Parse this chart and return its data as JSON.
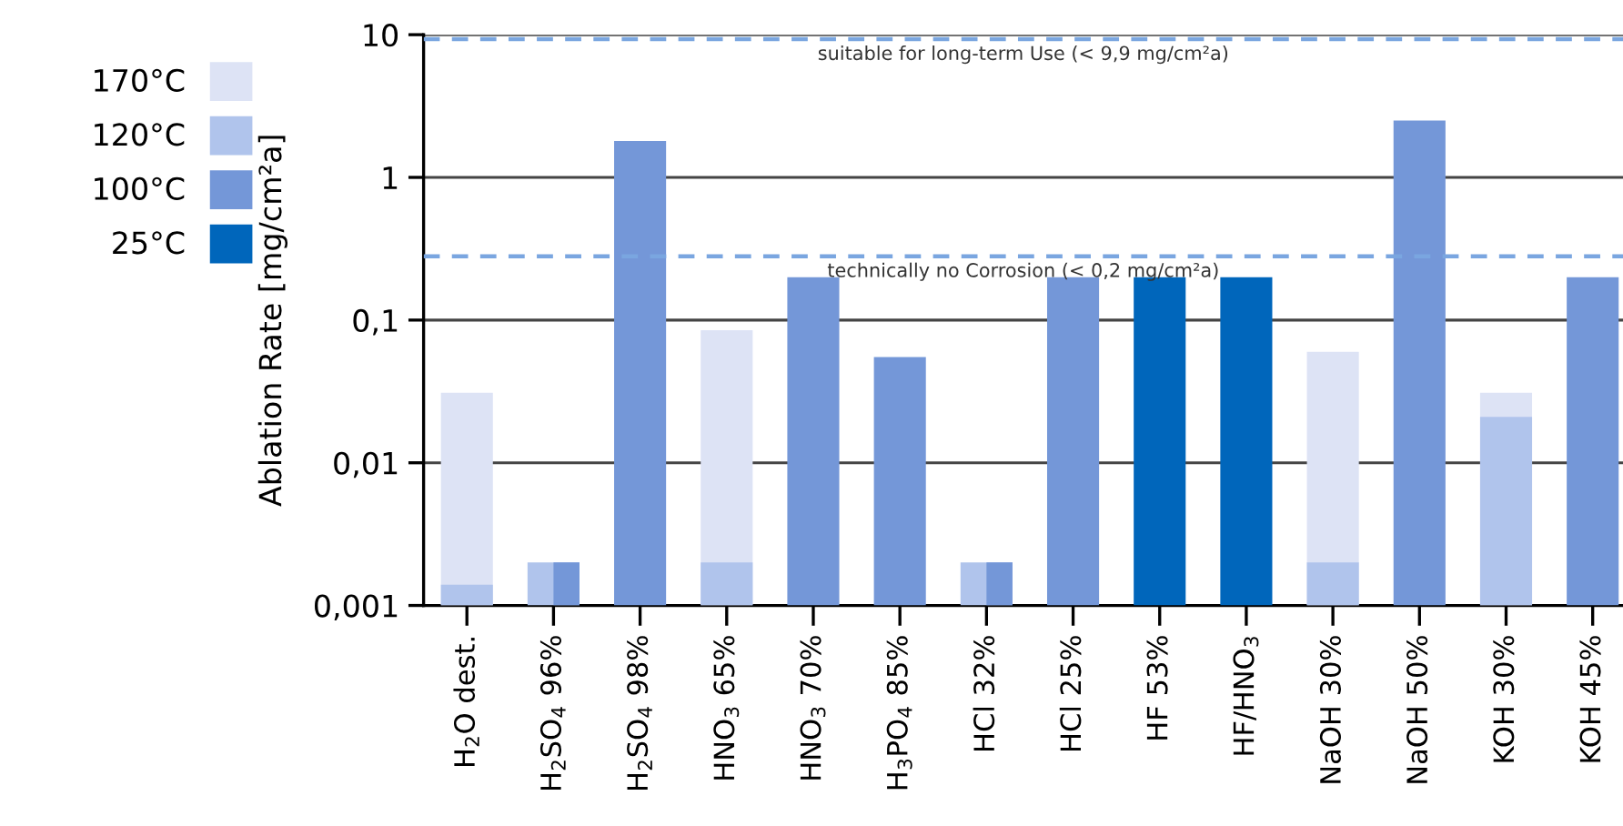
{
  "chart_data": {
    "type": "bar",
    "ylabel": "Ablation Rate [mg/cm²a]",
    "categories": [
      "H$_{2}$O dest.",
      "H$_{2}$SO$_{4}$ 96%",
      "H$_{2}$SO$_{4}$ 98%",
      "HNO$_{3}$ 65%",
      "HNO$_{3}$ 70%",
      "H$_{3}$PO$_{4}$ 85%",
      "HCl 32%",
      "HCl 25%",
      "HF 53%",
      "HF/HNO$_{3}$",
      "NaOH 30%",
      "NaOH 50%",
      "KOH 30%",
      "KOH 45%"
    ],
    "series": [
      {
        "name": "170°C",
        "color": "#dde3f5",
        "values": [
          0.031,
          null,
          null,
          0.085,
          null,
          null,
          null,
          null,
          null,
          null,
          0.06,
          null,
          0.031,
          null
        ]
      },
      {
        "name": "120°C",
        "color": "#b0c4ec",
        "values": [
          0.0014,
          0.002,
          null,
          0.002,
          null,
          null,
          0.002,
          null,
          null,
          null,
          0.002,
          null,
          0.021,
          null
        ]
      },
      {
        "name": "100°C",
        "color": "#7497d8",
        "values": [
          null,
          0.002,
          1.8,
          null,
          0.2,
          0.055,
          0.002,
          0.2,
          null,
          null,
          null,
          2.5,
          null,
          0.2
        ]
      },
      {
        "name": "25°C",
        "color": "#0066bb",
        "values": [
          null,
          null,
          null,
          null,
          null,
          null,
          null,
          null,
          0.2,
          0.2,
          null,
          null,
          null,
          null
        ]
      }
    ],
    "log": "y",
    "ylim": [
      0.001,
      10
    ],
    "yticks": [
      {
        "value": 0.001,
        "label": "0,001"
      },
      {
        "value": 0.01,
        "label": "0,01"
      },
      {
        "value": 0.1,
        "label": "0,1"
      },
      1,
      10
    ],
    "grid": "y",
    "legend": "left",
    "ref_lines": [
      {
        "axis": "y",
        "value": 9.3,
        "label": "suitable for long-term Use (< 9,9 mg/cm²a)",
        "color": "#7aa6e0",
        "line_style": "dashed"
      },
      {
        "axis": "y",
        "value": 0.28,
        "label": "technically no Corrosion (< 0,2 mg/cm²a)",
        "color": "#7aa6e0",
        "line_style": "dashed"
      }
    ]
  }
}
